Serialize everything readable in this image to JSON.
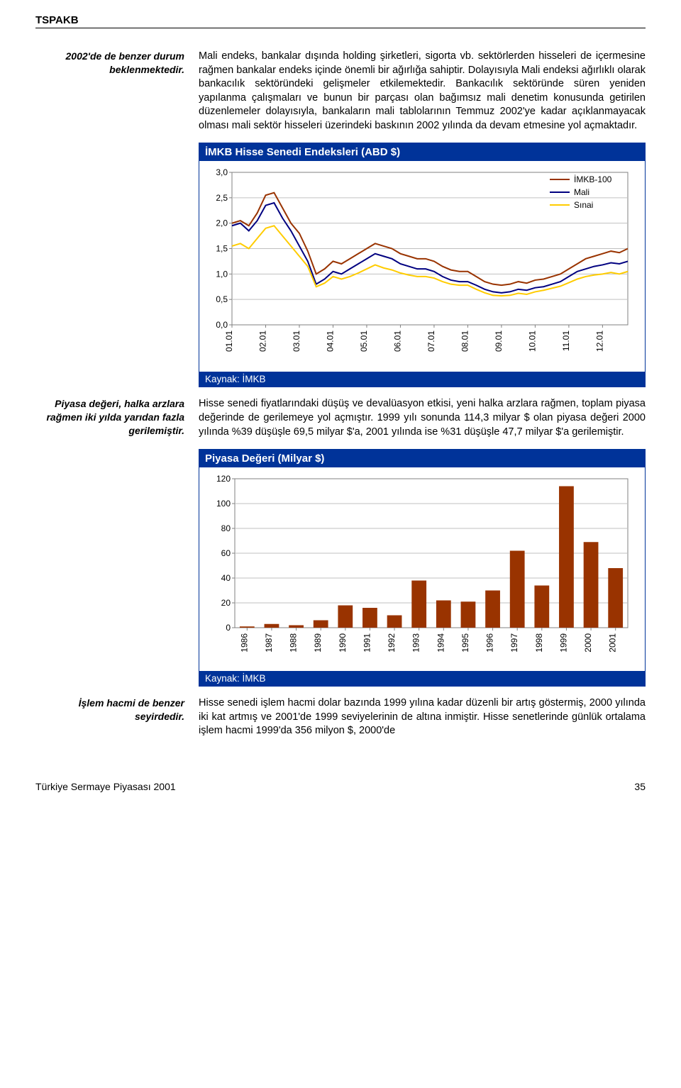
{
  "header": {
    "org": "TSPAKB"
  },
  "section1": {
    "note": "2002'de de benzer durum beklenmektedir.",
    "body": "Mali endeks, bankalar dışında holding şirketleri, sigorta vb. sektörlerden hisseleri de içermesine rağmen bankalar endeks içinde önemli bir ağırlığa sahiptir. Dolayısıyla Mali endeksi ağırlıklı olarak bankacılık sektöründeki gelişmeler etkilemektedir. Bankacılık sektöründe süren yeniden yapılanma çalışmaları ve bunun bir parçası olan bağımsız mali denetim konusunda getirilen düzenlemeler dolayısıyla, bankaların mali tablolarının Temmuz 2002'ye kadar açıklanmayacak olması mali sektör hisseleri üzerindeki baskının 2002 yılında da devam etmesine yol açmaktadır."
  },
  "chart1": {
    "type": "line",
    "title": "İMKB Hisse Senedi Endeksleri (ABD $)",
    "source": "Kaynak: İMKB",
    "series": [
      {
        "name": "İMKB-100",
        "color": "#993300"
      },
      {
        "name": "Mali",
        "color": "#000080"
      },
      {
        "name": "Sınai",
        "color": "#FFCC00"
      }
    ],
    "y_ticks": [
      "0,0",
      "0,5",
      "1,0",
      "1,5",
      "2,0",
      "2,5",
      "3,0"
    ],
    "y_min": 0.0,
    "y_max": 3.0,
    "x_labels": [
      "01.01",
      "02.01",
      "03.01",
      "04.01",
      "05.01",
      "06.01",
      "07.01",
      "08.01",
      "09.01",
      "10.01",
      "11.01",
      "12.01"
    ],
    "n_points": 48,
    "data": {
      "IMKB100": [
        2.0,
        2.05,
        1.95,
        2.2,
        2.55,
        2.6,
        2.3,
        2.0,
        1.8,
        1.45,
        1.0,
        1.1,
        1.25,
        1.2,
        1.3,
        1.4,
        1.5,
        1.6,
        1.55,
        1.5,
        1.4,
        1.35,
        1.3,
        1.3,
        1.25,
        1.15,
        1.08,
        1.05,
        1.05,
        0.95,
        0.85,
        0.8,
        0.78,
        0.8,
        0.85,
        0.82,
        0.88,
        0.9,
        0.95,
        1.0,
        1.1,
        1.2,
        1.3,
        1.35,
        1.4,
        1.45,
        1.42,
        1.5
      ],
      "Mali": [
        1.95,
        2.0,
        1.85,
        2.05,
        2.35,
        2.4,
        2.1,
        1.85,
        1.55,
        1.25,
        0.8,
        0.9,
        1.05,
        1.0,
        1.1,
        1.2,
        1.3,
        1.4,
        1.35,
        1.3,
        1.2,
        1.15,
        1.1,
        1.1,
        1.05,
        0.95,
        0.88,
        0.85,
        0.85,
        0.78,
        0.7,
        0.65,
        0.63,
        0.65,
        0.7,
        0.68,
        0.73,
        0.75,
        0.8,
        0.85,
        0.95,
        1.05,
        1.1,
        1.15,
        1.18,
        1.22,
        1.2,
        1.25
      ],
      "Sinai": [
        1.55,
        1.6,
        1.5,
        1.7,
        1.9,
        1.95,
        1.75,
        1.55,
        1.35,
        1.15,
        0.75,
        0.82,
        0.95,
        0.9,
        0.95,
        1.02,
        1.1,
        1.18,
        1.12,
        1.08,
        1.02,
        0.98,
        0.95,
        0.95,
        0.92,
        0.85,
        0.8,
        0.78,
        0.78,
        0.7,
        0.63,
        0.58,
        0.57,
        0.58,
        0.62,
        0.6,
        0.65,
        0.68,
        0.72,
        0.76,
        0.83,
        0.9,
        0.95,
        0.98,
        1.0,
        1.03,
        1.0,
        1.05
      ]
    },
    "background": "#ffffff",
    "grid_color": "#c0c0c0",
    "axis_color": "#808080",
    "tick_fontsize": 12,
    "legend_fontsize": 12,
    "line_width": 2
  },
  "section2": {
    "note": "Piyasa değeri, halka arzlara rağmen iki yılda yarıdan fazla gerilemiştir.",
    "body": "Hisse senedi fiyatlarındaki düşüş ve devalüasyon etkisi, yeni halka arzlara rağmen, toplam piyasa değerinde de gerilemeye yol açmıştır. 1999 yılı sonunda 114,3 milyar $ olan piyasa değeri 2000 yılında %39 düşüşle 69,5 milyar $'a, 2001 yılında ise %31 düşüşle 47,7 milyar $'a gerilemiştir."
  },
  "chart2": {
    "type": "bar",
    "title": "Piyasa Değeri (Milyar $)",
    "source": "Kaynak: İMKB",
    "bar_color": "#993300",
    "y_ticks": [
      0,
      20,
      40,
      60,
      80,
      100,
      120
    ],
    "y_min": 0,
    "y_max": 120,
    "x_labels": [
      "1986",
      "1987",
      "1988",
      "1989",
      "1990",
      "1991",
      "1992",
      "1993",
      "1994",
      "1995",
      "1996",
      "1997",
      "1998",
      "1999",
      "2000",
      "2001"
    ],
    "values": [
      1,
      3,
      2,
      6,
      18,
      16,
      10,
      38,
      22,
      21,
      30,
      62,
      34,
      114,
      69,
      48
    ],
    "background": "#ffffff",
    "grid_color": "#c0c0c0",
    "axis_color": "#808080",
    "tick_fontsize": 12,
    "bar_width_ratio": 0.6
  },
  "section3": {
    "note": "İşlem hacmi de benzer seyirdedir.",
    "body": "Hisse senedi işlem hacmi dolar bazında 1999 yılına kadar düzenli bir artış göstermiş, 2000 yılında iki kat artmış ve 2001'de 1999 seviyelerinin de altına inmiştir. Hisse senetlerinde günlük ortalama işlem hacmi 1999'da 356 milyon $, 2000'de"
  },
  "footer": {
    "title": "Türkiye Sermaye Piyasası 2001",
    "page": "35"
  }
}
